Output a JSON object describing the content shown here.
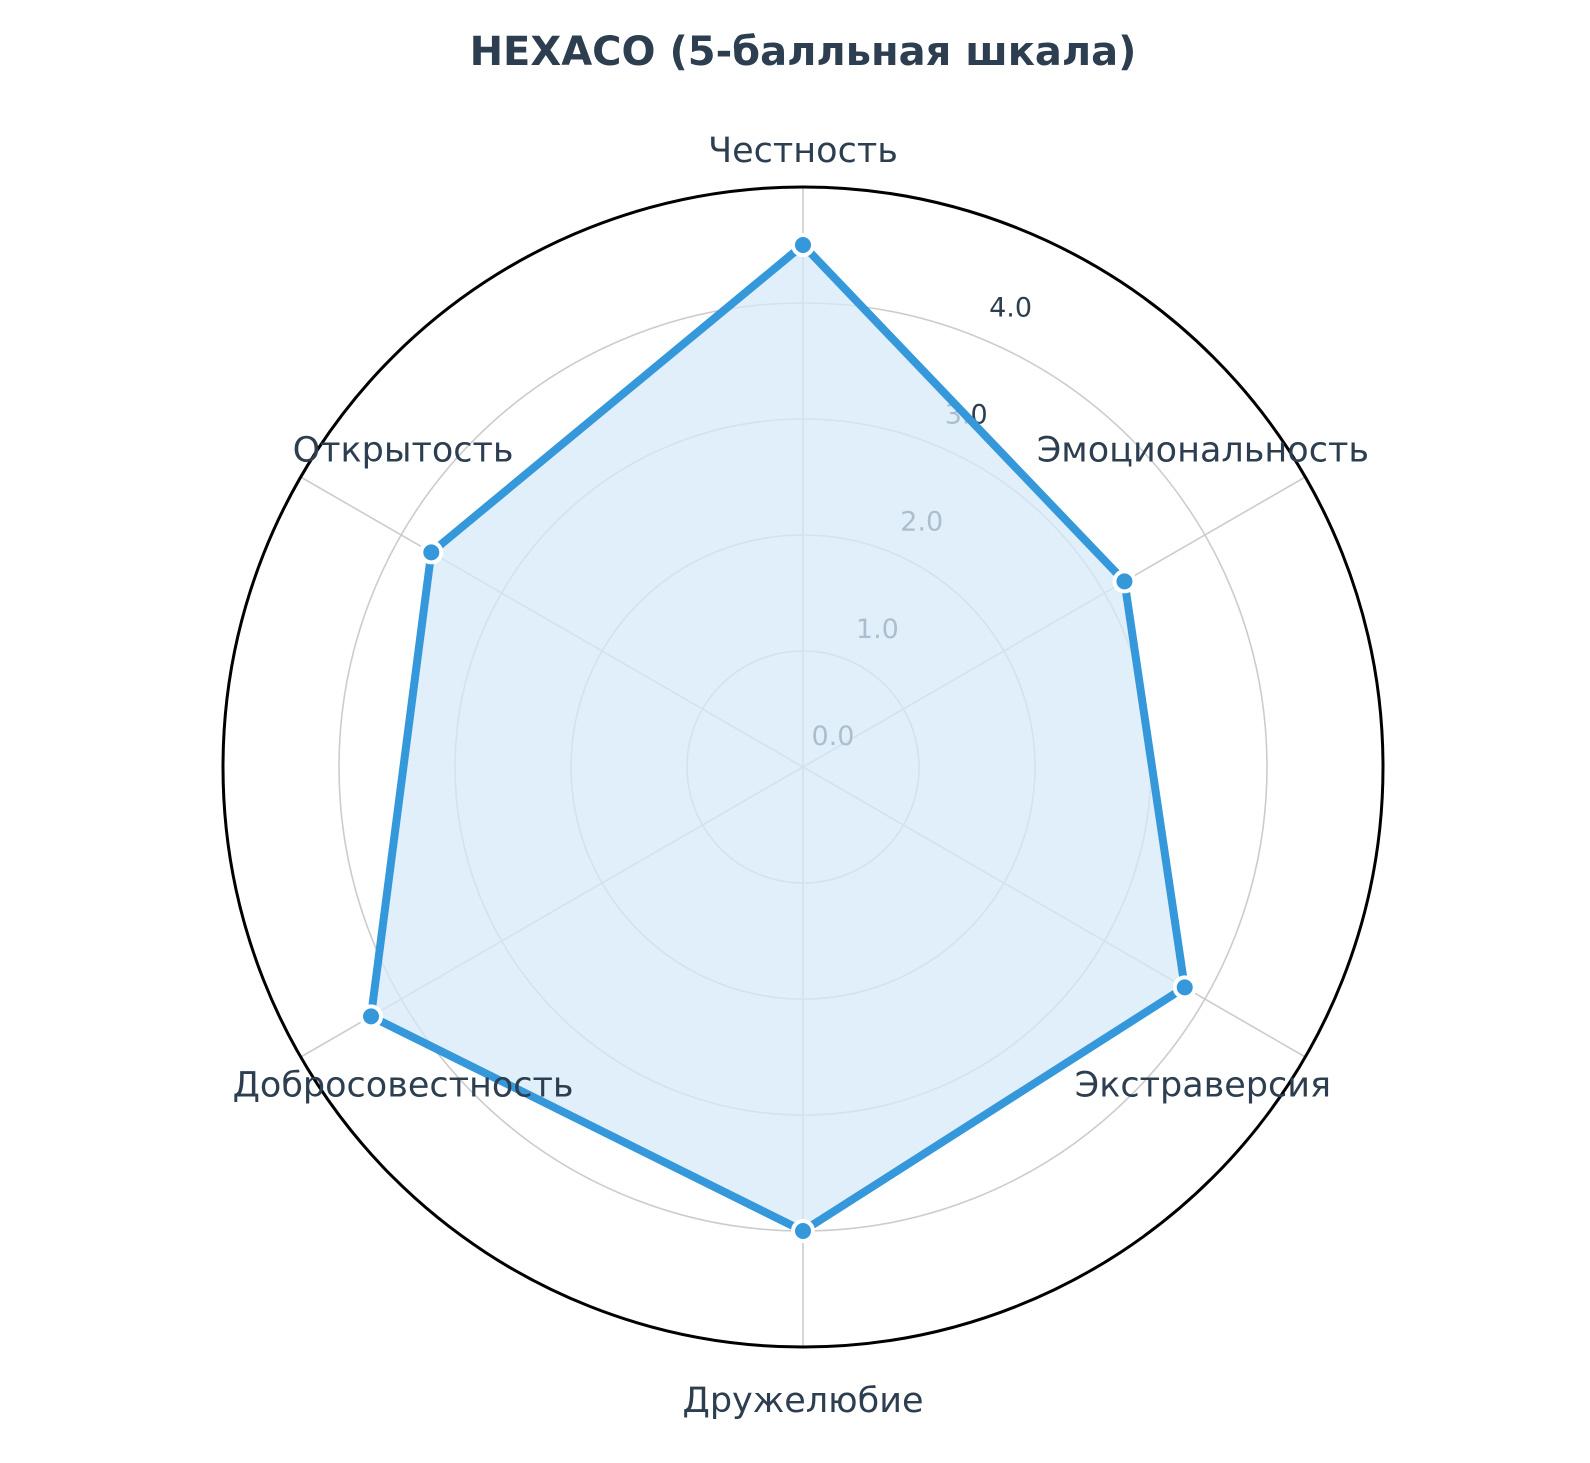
{
  "chart_data": {
    "type": "radar",
    "title": "HEXACO (5-балльная шкала)",
    "categories": [
      "Честность",
      "Эмоциональность",
      "Экстраверсия",
      "Дружелюбие",
      "Добросовестность",
      "Открытость"
    ],
    "series": [
      {
        "values": [
          4.5,
          3.2,
          3.8,
          4.0,
          4.3,
          3.7
        ],
        "color": "#3498db",
        "fill_color": "#d6e9f8"
      }
    ],
    "radial_ticks": [
      0.0,
      1.0,
      2.0,
      3.0,
      4.0
    ],
    "radial_tick_labels": [
      "0.0",
      "1.0",
      "2.0",
      "3.0",
      "4.0"
    ],
    "rlim": [
      0,
      5
    ],
    "grid": true
  }
}
